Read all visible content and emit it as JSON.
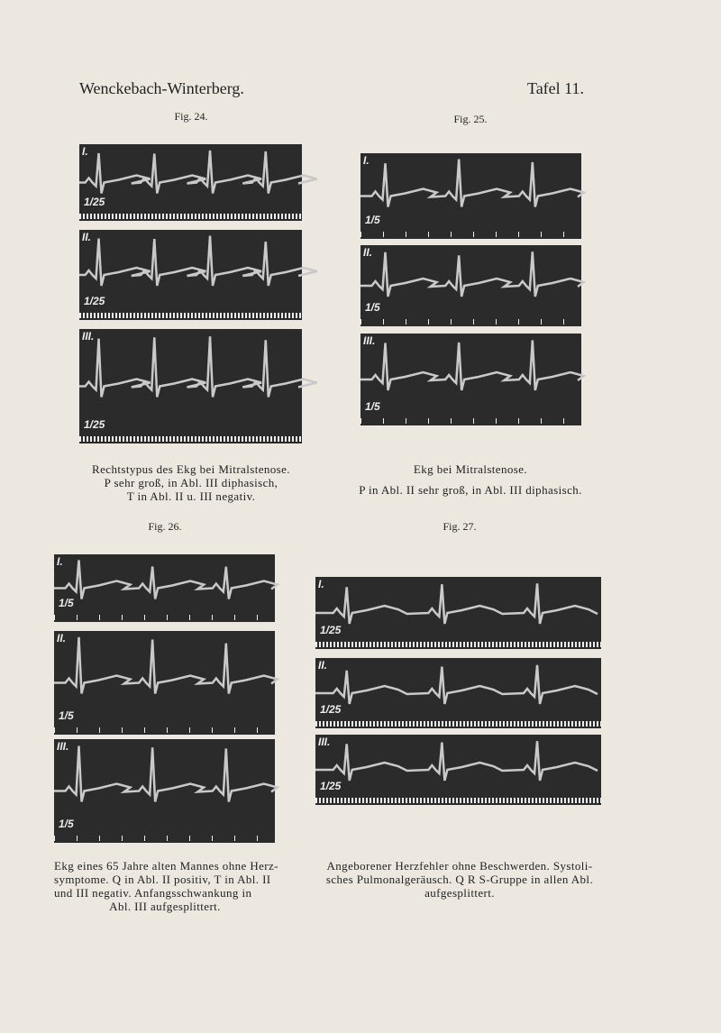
{
  "header": {
    "left": "Wenckebach-Winterberg.",
    "right": "Tafel 11."
  },
  "figures": [
    {
      "label": "Fig. 24.",
      "panels": [
        {
          "lead": "I.",
          "time": "1/25"
        },
        {
          "lead": "II.",
          "time": "1/25"
        },
        {
          "lead": "III.",
          "time": "1/25"
        }
      ],
      "caption": [
        "Rechtstypus des Ekg bei Mitralstenose.",
        "P sehr groß, in Abl. III diphasisch,",
        "T in Abl. II u. III negativ."
      ]
    },
    {
      "label": "Fig. 25.",
      "panels": [
        {
          "lead": "I.",
          "time": "1/5"
        },
        {
          "lead": "II.",
          "time": "1/5"
        },
        {
          "lead": "III.",
          "time": "1/5"
        }
      ],
      "caption": [
        "Ekg bei Mitralstenose.",
        "P in Abl. II sehr groß, in Abl. III diphasisch."
      ]
    },
    {
      "label": "Fig. 26.",
      "panels": [
        {
          "lead": "I.",
          "time": "1/5"
        },
        {
          "lead": "II.",
          "time": "1/5"
        },
        {
          "lead": "III.",
          "time": "1/5"
        }
      ],
      "caption": [
        "Ekg eines 65 Jahre alten Mannes ohne Herz-",
        "symptome. Q in Abl. II positiv, T in Abl. II",
        "und III negativ. Anfangsschwankung in",
        "Abl. III aufgesplittert."
      ]
    },
    {
      "label": "Fig. 27.",
      "panels": [
        {
          "lead": "I.",
          "time": "1/25"
        },
        {
          "lead": "II.",
          "time": "1/25"
        },
        {
          "lead": "III.",
          "time": "1/25"
        }
      ],
      "caption": [
        "Angeborener Herzfehler ohne Beschwerden. Systoli-",
        "sches Pulmonalgeräusch. Q R S-Gruppe in allen Abl.",
        "aufgesplittert."
      ]
    }
  ]
}
